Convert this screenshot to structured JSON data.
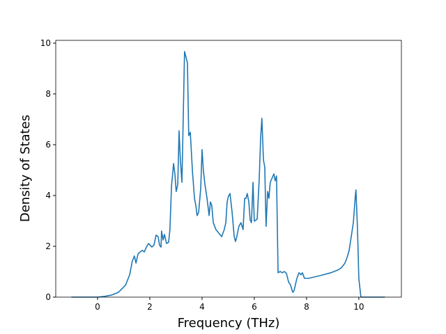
{
  "chart_data": {
    "type": "line",
    "x_label": "Frequency (THz)",
    "y_label": "Density of States",
    "xlim": [
      -1.6,
      11.63
    ],
    "ylim": [
      0,
      10.11
    ],
    "xticks": [
      0,
      2,
      4,
      6,
      8,
      10
    ],
    "yticks": [
      0,
      2,
      4,
      6,
      8,
      10
    ],
    "series": [
      {
        "color": "#1f77b4",
        "x": [
          -1,
          0,
          0.27,
          0.53,
          0.8,
          1.07,
          1.23,
          1.33,
          1.41,
          1.47,
          1.55,
          1.63,
          1.71,
          1.79,
          1.87,
          1.95,
          2.08,
          2.16,
          2.24,
          2.32,
          2.37,
          2.43,
          2.45,
          2.51,
          2.56,
          2.64,
          2.72,
          2.77,
          2.83,
          2.91,
          2.96,
          3.01,
          3.07,
          3.12,
          3.17,
          3.23,
          3.33,
          3.44,
          3.49,
          3.55,
          3.63,
          3.71,
          3.76,
          3.81,
          3.87,
          3.95,
          4.0,
          4.05,
          4.11,
          4.19,
          4.27,
          4.32,
          4.37,
          4.43,
          4.53,
          4.64,
          4.75,
          4.85,
          4.91,
          4.96,
          5.01,
          5.07,
          5.15,
          5.23,
          5.28,
          5.33,
          5.41,
          5.49,
          5.57,
          5.63,
          5.68,
          5.73,
          5.79,
          5.84,
          5.89,
          5.95,
          6.0,
          6.11,
          6.19,
          6.24,
          6.29,
          6.35,
          6.4,
          6.45,
          6.51,
          6.56,
          6.61,
          6.69,
          6.75,
          6.8,
          6.85,
          6.91,
          6.99,
          7.07,
          7.15,
          7.23,
          7.31,
          7.39,
          7.47,
          7.52,
          7.63,
          7.71,
          7.79,
          7.84,
          7.92,
          8.08,
          8.53,
          8.93,
          9.2,
          9.33,
          9.47,
          9.55,
          9.63,
          9.71,
          9.79,
          9.87,
          9.89,
          9.95,
          10.0,
          10.08,
          11
        ],
        "values": [
          0,
          0,
          0.03,
          0.08,
          0.19,
          0.47,
          0.88,
          1.42,
          1.62,
          1.34,
          1.7,
          1.78,
          1.84,
          1.78,
          1.97,
          2.11,
          1.97,
          2.05,
          2.44,
          2.38,
          2.05,
          1.97,
          2.6,
          2.25,
          2.47,
          2.11,
          2.16,
          2.66,
          4.36,
          5.26,
          4.85,
          4.16,
          4.44,
          6.55,
          5.4,
          4.52,
          9.67,
          9.23,
          6.36,
          6.49,
          4.99,
          3.89,
          3.62,
          3.21,
          3.34,
          4.3,
          5.81,
          4.99,
          4.44,
          3.89,
          3.21,
          3.75,
          3.62,
          2.93,
          2.66,
          2.52,
          2.38,
          2.66,
          2.93,
          3.75,
          3.97,
          4.08,
          3.34,
          2.38,
          2.19,
          2.38,
          2.79,
          2.93,
          2.66,
          3.89,
          3.89,
          4.08,
          3.75,
          3.04,
          2.93,
          4.52,
          2.99,
          3.07,
          4.71,
          6.22,
          7.04,
          5.4,
          5.12,
          2.79,
          4.16,
          3.89,
          4.52,
          4.71,
          4.85,
          4.58,
          4.77,
          0.96,
          1.01,
          0.96,
          1.01,
          0.93,
          0.6,
          0.47,
          0.19,
          0.25,
          0.74,
          0.96,
          0.88,
          0.96,
          0.74,
          0.74,
          0.85,
          0.96,
          1.07,
          1.15,
          1.34,
          1.56,
          1.84,
          2.38,
          2.93,
          4.03,
          4.22,
          2.66,
          0.74,
          0,
          0
        ]
      }
    ]
  }
}
